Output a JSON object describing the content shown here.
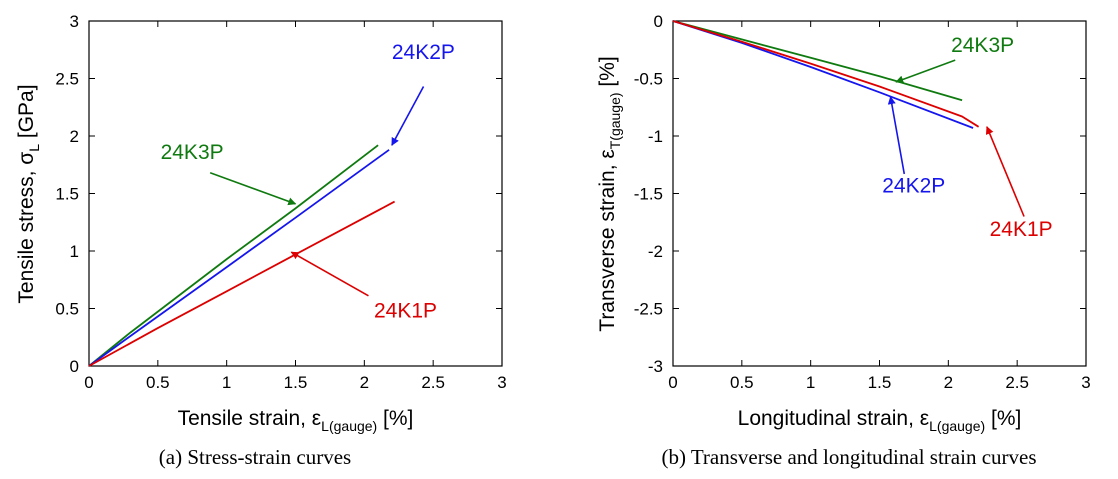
{
  "colors": {
    "24K1P": "#dd0000",
    "24K2P": "#1515ee",
    "24K3P": "#0f7a0f"
  },
  "chart_data": [
    {
      "type": "line",
      "caption": "(a) Stress-strain curves",
      "xlabel": {
        "main": "Tensile strain, ε",
        "sub": "L(gauge)",
        "tail": "  [%]"
      },
      "ylabel": {
        "main": "Tensile stress, σ",
        "sub": "L",
        "tail": " [GPa]"
      },
      "xlim": [
        0,
        3
      ],
      "ylim": [
        0,
        3
      ],
      "xticks": [
        "0",
        "0.5",
        "1",
        "1.5",
        "2",
        "2.5",
        "3"
      ],
      "yticks": [
        "0",
        "0.5",
        "1",
        "1.5",
        "2",
        "2.5",
        "3"
      ],
      "series": [
        {
          "name": "24K3P",
          "x": [
            0,
            0.3,
            1.0,
            1.5,
            2.1
          ],
          "y": [
            0,
            0.29,
            0.93,
            1.37,
            1.92
          ]
        },
        {
          "name": "24K2P",
          "x": [
            0,
            0.3,
            1.0,
            1.5,
            2.18
          ],
          "y": [
            0,
            0.26,
            0.86,
            1.29,
            1.88
          ]
        },
        {
          "name": "24K1P",
          "x": [
            0,
            0.5,
            1.0,
            1.5,
            2.22
          ],
          "y": [
            0,
            0.33,
            0.65,
            0.97,
            1.43
          ]
        }
      ],
      "annotations": [
        {
          "text": "24K3P",
          "series": "24K3P",
          "label_x": 0.52,
          "label_y": 1.8,
          "arrow_from": [
            0.88,
            1.68
          ],
          "arrow_to": [
            1.5,
            1.41
          ]
        },
        {
          "text": "24K2P",
          "series": "24K2P",
          "label_x": 2.2,
          "label_y": 2.67,
          "arrow_from": [
            2.43,
            2.43
          ],
          "arrow_to": [
            2.2,
            1.92
          ]
        },
        {
          "text": "24K1P",
          "series": "24K1P",
          "label_x": 2.07,
          "label_y": 0.42,
          "arrow_from": [
            2.03,
            0.61
          ],
          "arrow_to": [
            1.47,
            0.99
          ]
        }
      ]
    },
    {
      "type": "line",
      "caption": "(b) Transverse and longitudinal strain curves",
      "xlabel": {
        "main": "Longitudinal strain, ε",
        "sub": "L(gauge)",
        "tail": "  [%]"
      },
      "ylabel": {
        "main": "Transverse strain, ε",
        "sub": "T(gauge)",
        "tail": " [%]"
      },
      "xlim": [
        0,
        3
      ],
      "ylim": [
        -3,
        0
      ],
      "xticks": [
        "0",
        "0.5",
        "1",
        "1.5",
        "2",
        "2.5",
        "3"
      ],
      "yticks": [
        "0",
        "-0.5",
        "-1",
        "-1.5",
        "-2",
        "-2.5",
        "-3"
      ],
      "series": [
        {
          "name": "24K3P",
          "x": [
            0,
            0.5,
            1.0,
            1.5,
            2.1
          ],
          "y": [
            0,
            -0.16,
            -0.32,
            -0.48,
            -0.69
          ]
        },
        {
          "name": "24K2P",
          "x": [
            0,
            0.5,
            1.0,
            1.5,
            2.18
          ],
          "y": [
            0,
            -0.19,
            -0.4,
            -0.62,
            -0.93
          ]
        },
        {
          "name": "24K1P",
          "x": [
            0,
            0.5,
            1.0,
            1.5,
            2.1,
            2.22
          ],
          "y": [
            0,
            -0.18,
            -0.37,
            -0.57,
            -0.83,
            -0.92
          ]
        }
      ],
      "annotations": [
        {
          "text": "24K3P",
          "series": "24K3P",
          "label_x": 2.02,
          "label_y": -0.27,
          "arrow_from": [
            2.05,
            -0.34
          ],
          "arrow_to": [
            1.62,
            -0.53
          ]
        },
        {
          "text": "24K2P",
          "series": "24K2P",
          "label_x": 1.52,
          "label_y": -1.49,
          "arrow_from": [
            1.68,
            -1.33
          ],
          "arrow_to": [
            1.58,
            -0.66
          ]
        },
        {
          "text": "24K1P",
          "series": "24K1P",
          "label_x": 2.3,
          "label_y": -1.87,
          "arrow_from": [
            2.55,
            -1.7
          ],
          "arrow_to": [
            2.28,
            -0.92
          ]
        }
      ]
    }
  ]
}
